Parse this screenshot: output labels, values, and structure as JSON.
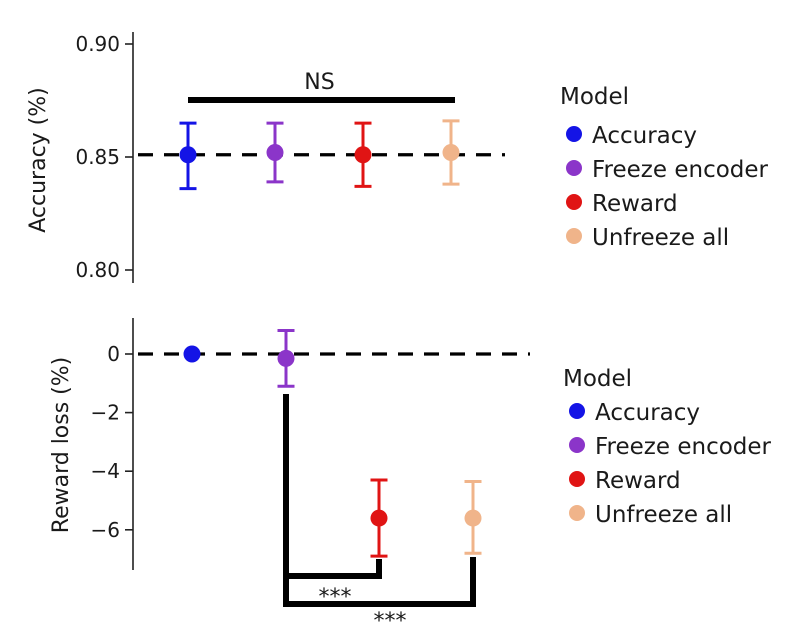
{
  "chart_data": [
    {
      "type": "scatter",
      "panel": "top",
      "ylabel": "Accuracy (%)",
      "ylim": [
        0.8,
        0.9
      ],
      "yticks": [
        0.8,
        0.85,
        0.9
      ],
      "ytick_labels": [
        "0.80",
        "0.85",
        "0.90"
      ],
      "reference_line": 0.851,
      "categories": [
        "Accuracy",
        "Freeze encoder",
        "Reward",
        "Unfreeze all"
      ],
      "series": [
        {
          "name": "Accuracy",
          "color": "#1414e6",
          "value": 0.851,
          "err_low": 0.836,
          "err_high": 0.865
        },
        {
          "name": "Freeze encoder",
          "color": "#8b35c9",
          "value": 0.852,
          "err_low": 0.839,
          "err_high": 0.865
        },
        {
          "name": "Reward",
          "color": "#e01414",
          "value": 0.851,
          "err_low": 0.837,
          "err_high": 0.865
        },
        {
          "name": "Unfreeze all",
          "color": "#f0b48a",
          "value": 0.852,
          "err_low": 0.838,
          "err_high": 0.866
        }
      ],
      "significance": [
        {
          "from": "Accuracy",
          "to": "Unfreeze all",
          "label": "NS"
        }
      ],
      "legend": {
        "title": "Model",
        "position": "right"
      }
    },
    {
      "type": "scatter",
      "panel": "bottom",
      "ylabel": "Reward loss (%)",
      "ylim": [
        -7.3,
        1.2
      ],
      "yticks": [
        0,
        -2,
        -4,
        -6
      ],
      "ytick_labels": [
        "0",
        "−2",
        "−4",
        "−6"
      ],
      "reference_line": 0,
      "categories": [
        "Accuracy",
        "Freeze encoder",
        "Reward",
        "Unfreeze all"
      ],
      "series": [
        {
          "name": "Accuracy",
          "color": "#1414e6",
          "value": 0.0,
          "err_low": 0.0,
          "err_high": 0.0
        },
        {
          "name": "Freeze encoder",
          "color": "#8b35c9",
          "value": -0.15,
          "err_low": -1.1,
          "err_high": 0.8
        },
        {
          "name": "Reward",
          "color": "#e01414",
          "value": -5.6,
          "err_low": -6.9,
          "err_high": -4.3
        },
        {
          "name": "Unfreeze all",
          "color": "#f0b48a",
          "value": -5.6,
          "err_low": -6.8,
          "err_high": -4.35
        }
      ],
      "significance": [
        {
          "from": "Freeze encoder",
          "to": "Reward",
          "label": "***"
        },
        {
          "from": "Freeze encoder",
          "to": "Unfreeze all",
          "label": "***"
        }
      ],
      "legend": {
        "title": "Model",
        "position": "right"
      }
    }
  ]
}
